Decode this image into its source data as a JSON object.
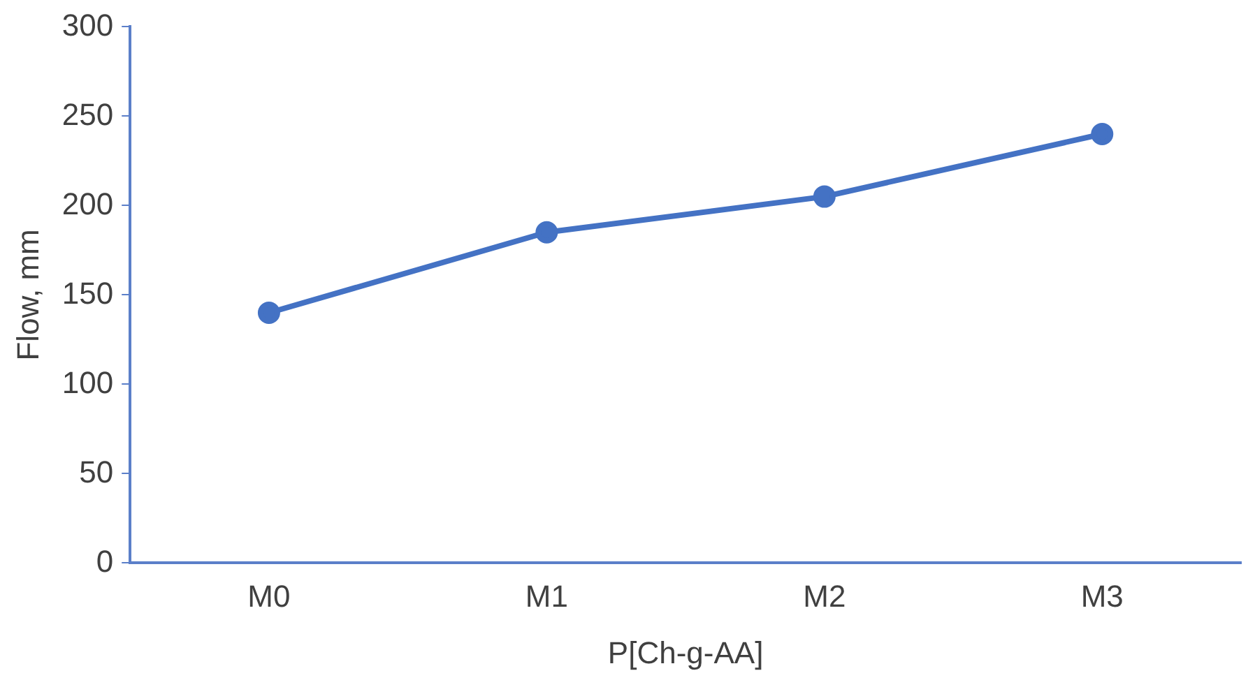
{
  "chart_data": {
    "type": "line",
    "xlabel": "P[Ch-g-AA]",
    "ylabel": "Flow, mm",
    "categories": [
      "M0",
      "M1",
      "M2",
      "M3"
    ],
    "series": [
      {
        "color": "#4472c4",
        "values": [
          140,
          185,
          205,
          240
        ]
      }
    ],
    "ylim": [
      0,
      300
    ],
    "yticks": [
      0,
      50,
      100,
      150,
      200,
      250,
      300
    ],
    "grid": false,
    "legend": false,
    "marker": "circle",
    "line_style": "solid"
  }
}
